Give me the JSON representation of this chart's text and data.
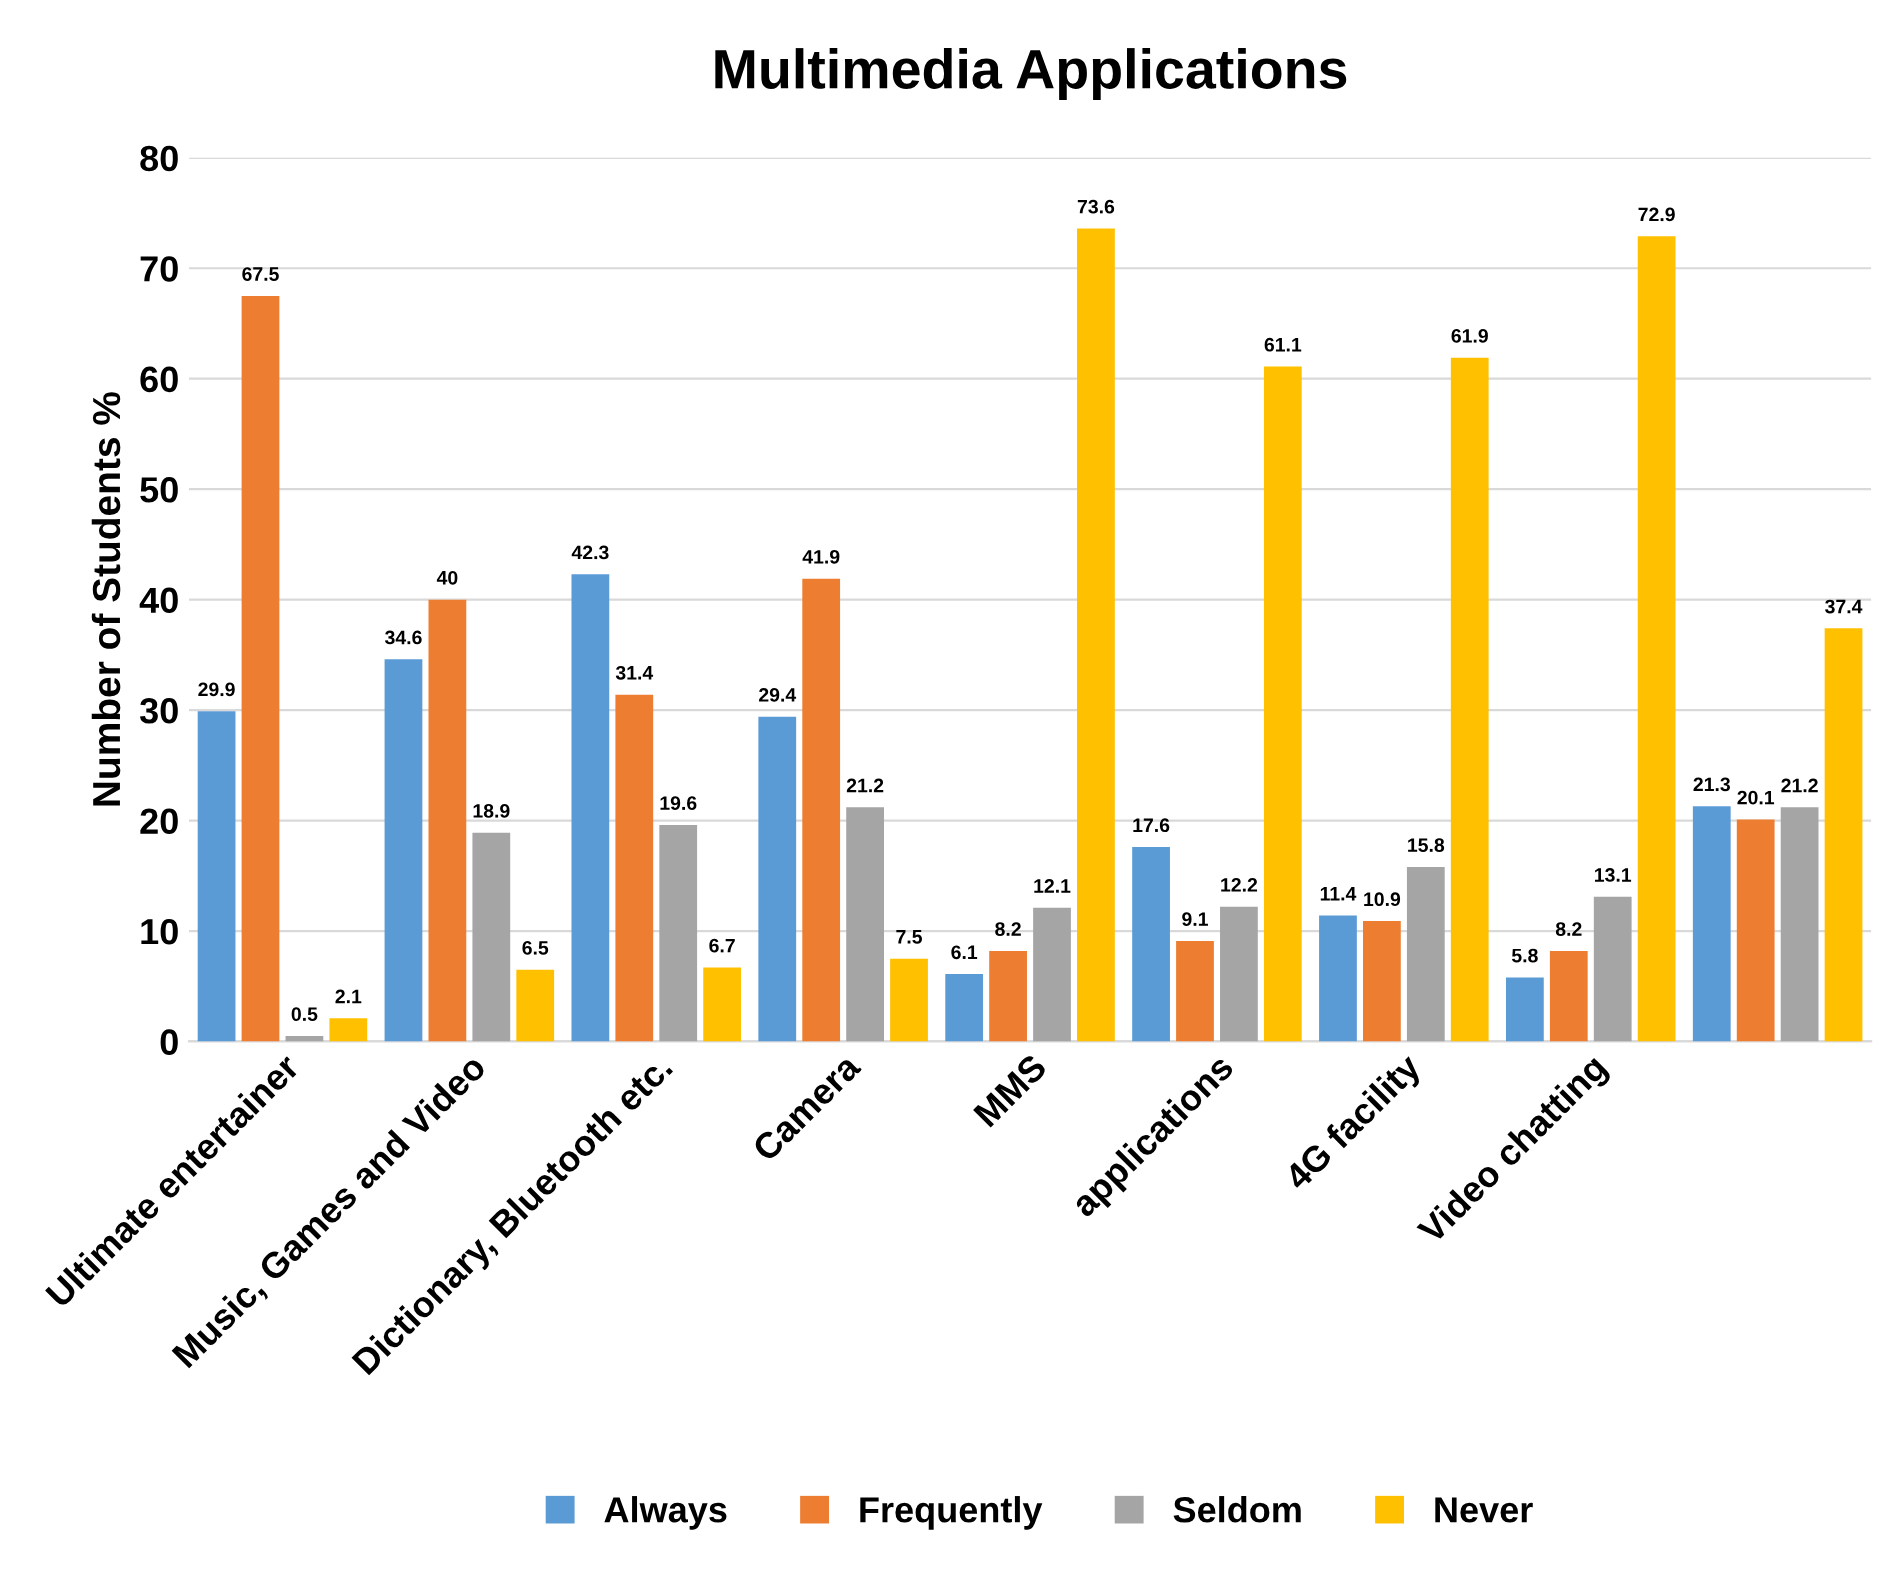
{
  "chart_data": {
    "type": "bar",
    "title": "Multimedia Applications",
    "ylabel": "Number of Students %",
    "categories": [
      "Ultimate entertainer",
      "Music, Games and Video",
      "Dictionary, Bluetooth etc.",
      "Camera",
      "MMS",
      "applications",
      "4G facility",
      "Video chatting",
      null
    ],
    "series": [
      {
        "name": "Always",
        "color": "#5b9bd5",
        "values": [
          29.9,
          34.6,
          42.3,
          29.4,
          6.1,
          17.6,
          11.4,
          5.8,
          21.3
        ]
      },
      {
        "name": "Frequently",
        "color": "#ed7d31",
        "values": [
          67.5,
          40,
          31.4,
          41.9,
          8.2,
          9.1,
          10.9,
          8.2,
          20.1
        ]
      },
      {
        "name": "Seldom",
        "color": "#a5a5a5",
        "values": [
          0.5,
          18.9,
          19.6,
          21.2,
          12.1,
          12.2,
          15.8,
          13.1,
          21.2
        ]
      },
      {
        "name": "Never",
        "color": "#ffc000",
        "values": [
          2.1,
          6.5,
          6.7,
          7.5,
          73.6,
          61.1,
          61.9,
          72.9,
          37.4
        ]
      }
    ],
    "ylim": [
      0,
      80
    ],
    "yticks": [
      0,
      10,
      20,
      30,
      40,
      50,
      60,
      70,
      80
    ],
    "grid": "y",
    "legend": "bottom",
    "data_labels": true
  }
}
